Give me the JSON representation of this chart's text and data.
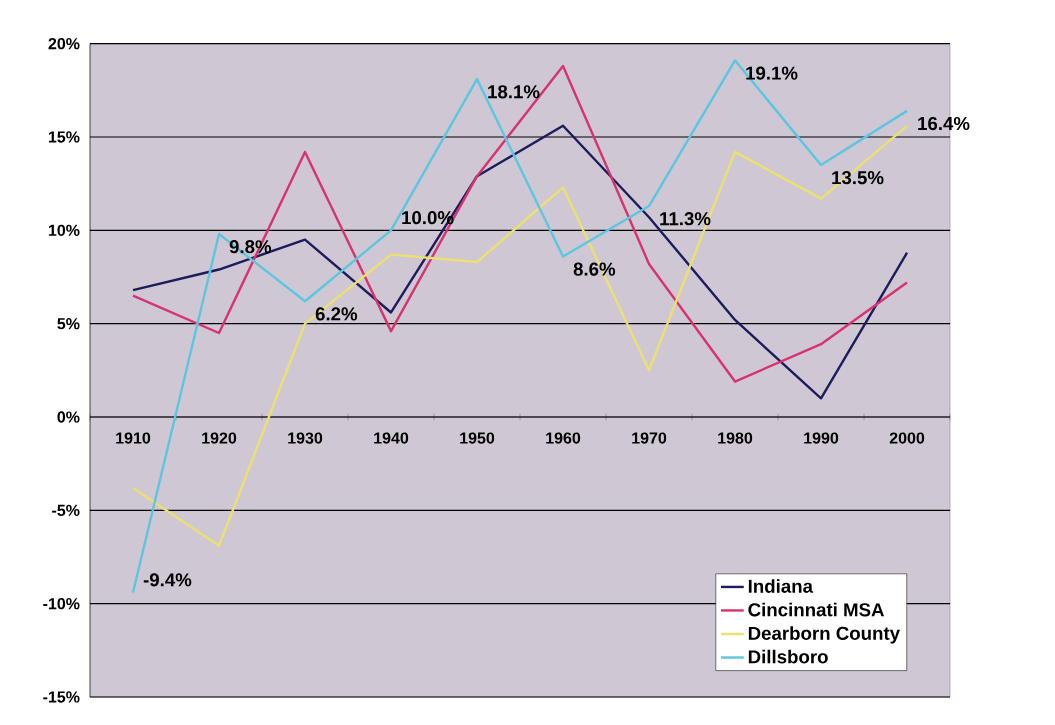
{
  "chart_data": {
    "type": "line",
    "categories": [
      "1910",
      "1920",
      "1930",
      "1940",
      "1950",
      "1960",
      "1970",
      "1980",
      "1990",
      "2000"
    ],
    "series": [
      {
        "name": "Indiana",
        "color": "#1c1c5c",
        "values": [
          6.8,
          7.9,
          9.5,
          5.6,
          12.9,
          15.6,
          10.7,
          5.2,
          1.0,
          8.8
        ]
      },
      {
        "name": "Cincinnati MSA",
        "color": "#d6336f",
        "values": [
          6.5,
          4.5,
          14.2,
          4.6,
          12.9,
          18.8,
          8.2,
          1.9,
          3.9,
          7.2
        ]
      },
      {
        "name": "Dearborn County",
        "color": "#ece070",
        "values": [
          -3.8,
          -6.9,
          5.0,
          8.7,
          8.3,
          12.3,
          2.5,
          14.2,
          11.7,
          15.6
        ]
      },
      {
        "name": "Dillsboro",
        "color": "#5cc6e0",
        "values": [
          -9.4,
          9.8,
          6.2,
          10.0,
          18.1,
          8.6,
          11.3,
          19.1,
          13.5,
          16.4
        ],
        "value_labels": [
          "-9.4%",
          "9.8%",
          "6.2%",
          "10.0%",
          "18.1%",
          "8.6%",
          "11.3%",
          "19.1%",
          "13.5%",
          "16.4%"
        ]
      }
    ],
    "ylim": [
      -15,
      20
    ],
    "yticks": [
      {
        "value": -15,
        "label": "-15%"
      },
      {
        "value": -10,
        "label": "-10%"
      },
      {
        "value": -5,
        "label": "-5%"
      },
      {
        "value": 0,
        "label": "0%"
      },
      {
        "value": 5,
        "label": "5%"
      },
      {
        "value": 10,
        "label": "10%"
      },
      {
        "value": 15,
        "label": "15%"
      },
      {
        "value": 20,
        "label": "20%"
      }
    ],
    "grid": "y",
    "legend": "bottom right",
    "marker": "none",
    "line_style": "solid"
  }
}
